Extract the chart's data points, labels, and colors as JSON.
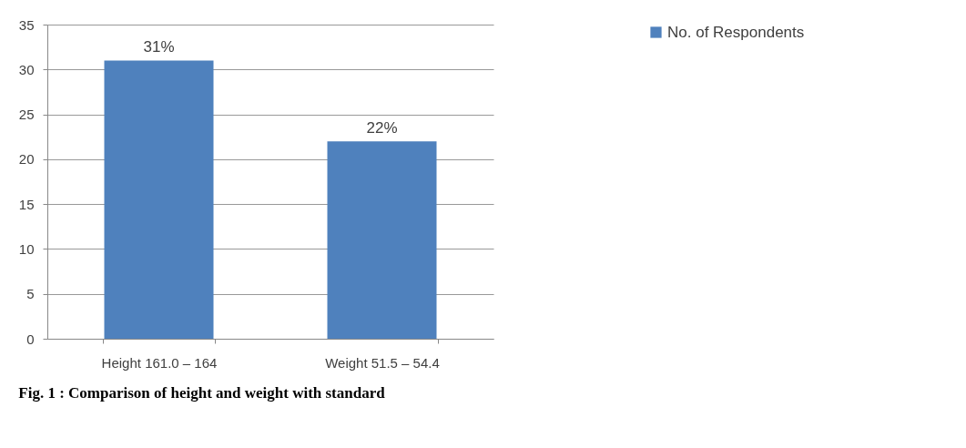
{
  "chart_data": {
    "type": "bar",
    "title": "Fig. 1 : Comparison of height and weight with standard",
    "categories": [
      "Height 161.0 – 164",
      "Weight 51.5 – 54.4"
    ],
    "series": [
      {
        "name": "No. of Respondents",
        "color": "#4f81bd",
        "values": [
          31,
          22
        ],
        "value_labels": [
          "31%",
          "22%"
        ]
      }
    ],
    "ylim": [
      0,
      35
    ],
    "yticks": [
      0,
      5,
      10,
      15,
      20,
      25,
      30,
      35
    ],
    "grid": "y",
    "legend": "right"
  }
}
